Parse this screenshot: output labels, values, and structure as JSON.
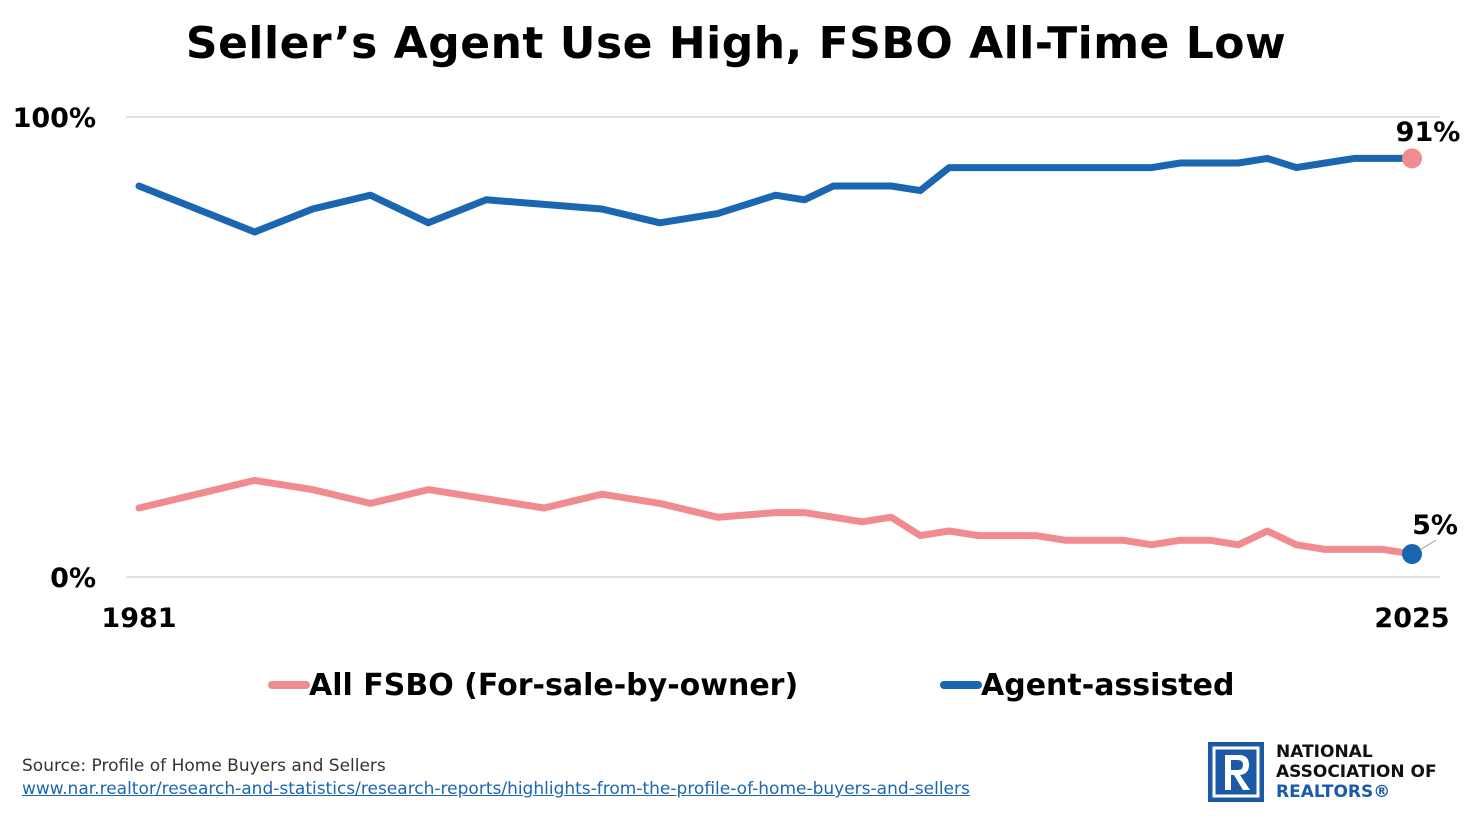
{
  "chart_data": {
    "type": "line",
    "title": "Seller’s Agent Use High, FSBO All-Time Low",
    "ylim": [
      0,
      100
    ],
    "y_tick_labels": [
      "0%",
      "100%"
    ],
    "x_tick_labels": [
      "1981",
      "2025"
    ],
    "grid": true,
    "legend_position": "bottom-center",
    "x": [
      1981,
      1983,
      1985,
      1987,
      1989,
      1991,
      1993,
      1995,
      1997,
      1999,
      2001,
      2003,
      2004,
      2005,
      2006,
      2007,
      2008,
      2009,
      2010,
      2011,
      2012,
      2013,
      2014,
      2015,
      2016,
      2017,
      2018,
      2019,
      2020,
      2021,
      2022,
      2023,
      2024,
      2025
    ],
    "series": [
      {
        "name": "All FSBO (For-sale-by-owner)",
        "color": "#f08c8f",
        "values": [
          15,
          18,
          21,
          19,
          16,
          19,
          17,
          15,
          18,
          16,
          13,
          14,
          14,
          13,
          12,
          13,
          9,
          10,
          9,
          9,
          9,
          8,
          8,
          8,
          7,
          8,
          8,
          7,
          10,
          7,
          6,
          6,
          6,
          5
        ],
        "end_label": "5%"
      },
      {
        "name": "Agent-assisted",
        "color": "#1b66b1",
        "values": [
          85,
          80,
          75,
          80,
          83,
          77,
          82,
          81,
          80,
          77,
          79,
          83,
          82,
          85,
          85,
          85,
          84,
          89,
          89,
          89,
          89,
          89,
          89,
          89,
          89,
          90,
          90,
          90,
          91,
          89,
          90,
          91,
          91,
          91
        ],
        "end_label": "91%"
      }
    ]
  },
  "source": {
    "text": "Source: Profile of Home Buyers and Sellers",
    "url_text": "www.nar.realtor/research-and-statistics/research-reports/highlights-from-the-profile-of-home-buyers-and-sellers"
  },
  "logo": {
    "line1": "NATIONAL",
    "line2": "ASSOCIATION OF",
    "line3": "REALTORS®"
  }
}
